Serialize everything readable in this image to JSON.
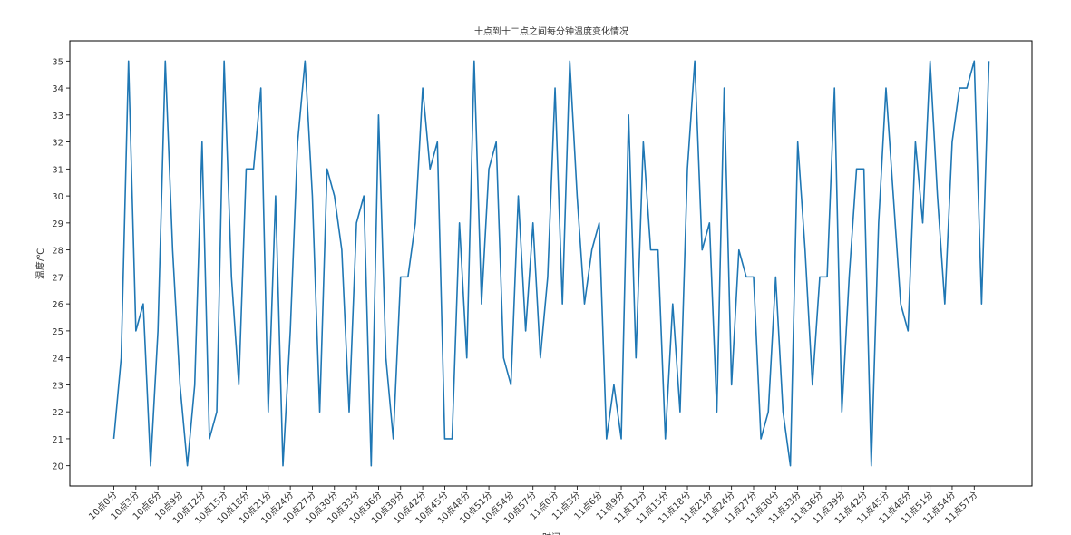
{
  "chart_data": {
    "type": "line",
    "title": "十点到十二点之间每分钟温度变化情况",
    "xlabel": "时间",
    "ylabel": "温度/℃",
    "ylim": [
      19.25,
      35.75
    ],
    "yticks": [
      20,
      21,
      22,
      23,
      24,
      25,
      26,
      27,
      28,
      29,
      30,
      31,
      32,
      33,
      34,
      35
    ],
    "grid": false,
    "color": "#1f77b4",
    "x": [
      "10点0分",
      "10点1分",
      "10点2分",
      "10点3分",
      "10点4分",
      "10点5分",
      "10点6分",
      "10点7分",
      "10点8分",
      "10点9分",
      "10点10分",
      "10点11分",
      "10点12分",
      "10点13分",
      "10点14分",
      "10点15分",
      "10点16分",
      "10点17分",
      "10点18分",
      "10点19分",
      "10点20分",
      "10点21分",
      "10点22分",
      "10点23分",
      "10点24分",
      "10点25分",
      "10点26分",
      "10点27分",
      "10点28分",
      "10点29分",
      "10点30分",
      "10点31分",
      "10点32分",
      "10点33分",
      "10点34分",
      "10点35分",
      "10点36分",
      "10点37分",
      "10点38分",
      "10点39分",
      "10点40分",
      "10点41分",
      "10点42分",
      "10点43分",
      "10点44分",
      "10点45分",
      "10点46分",
      "10点47分",
      "10点48分",
      "10点49分",
      "10点50分",
      "10点51分",
      "10点52分",
      "10点53分",
      "10点54分",
      "10点55分",
      "10点56分",
      "10点57分",
      "10点58分",
      "10点59分",
      "11点0分",
      "11点1分",
      "11点2分",
      "11点3分",
      "11点4分",
      "11点5分",
      "11点6分",
      "11点7分",
      "11点8分",
      "11点9分",
      "11点10分",
      "11点11分",
      "11点12分",
      "11点13分",
      "11点14分",
      "11点15分",
      "11点16分",
      "11点17分",
      "11点18分",
      "11点19分",
      "11点20分",
      "11点21分",
      "11点22分",
      "11点23分",
      "11点24分",
      "11点25分",
      "11点26分",
      "11点27分",
      "11点28分",
      "11点29分",
      "11点30分",
      "11点31分",
      "11点32分",
      "11点33分",
      "11点34分",
      "11点35分",
      "11点36分",
      "11点37分",
      "11点38分",
      "11点39分",
      "11点40分",
      "11点41分",
      "11点42分",
      "11点43分",
      "11点44分",
      "11点45分",
      "11点46分",
      "11点47分",
      "11点48分",
      "11点49分",
      "11点50分",
      "11点51分",
      "11点52分",
      "11点53分",
      "11点54分",
      "11点55分",
      "11点56分",
      "11点57分",
      "11点58分",
      "11点59分"
    ],
    "xtick_step": 3,
    "values": [
      21,
      24,
      35,
      25,
      26,
      20,
      25,
      35,
      28,
      23,
      20,
      23,
      32,
      21,
      22,
      35,
      27,
      23,
      31,
      31,
      34,
      22,
      30,
      20,
      25,
      32,
      35,
      30,
      22,
      31,
      30,
      28,
      22,
      29,
      30,
      20,
      33,
      24,
      21,
      27,
      27,
      29,
      34,
      31,
      32,
      21,
      21,
      29,
      24,
      35,
      26,
      31,
      32,
      24,
      23,
      30,
      25,
      29,
      24,
      27,
      34,
      26,
      35,
      30,
      26,
      28,
      29,
      21,
      23,
      21,
      33,
      24,
      32,
      28,
      28,
      21,
      26,
      22,
      31,
      35,
      28,
      29,
      22,
      34,
      23,
      28,
      27,
      27,
      21,
      22,
      27,
      22,
      20,
      32,
      28,
      23,
      27,
      27,
      34,
      22,
      27,
      31,
      31,
      20,
      29,
      34,
      30,
      26,
      25,
      32,
      29,
      35,
      30,
      26,
      32,
      34,
      34,
      35,
      26,
      35
    ]
  }
}
